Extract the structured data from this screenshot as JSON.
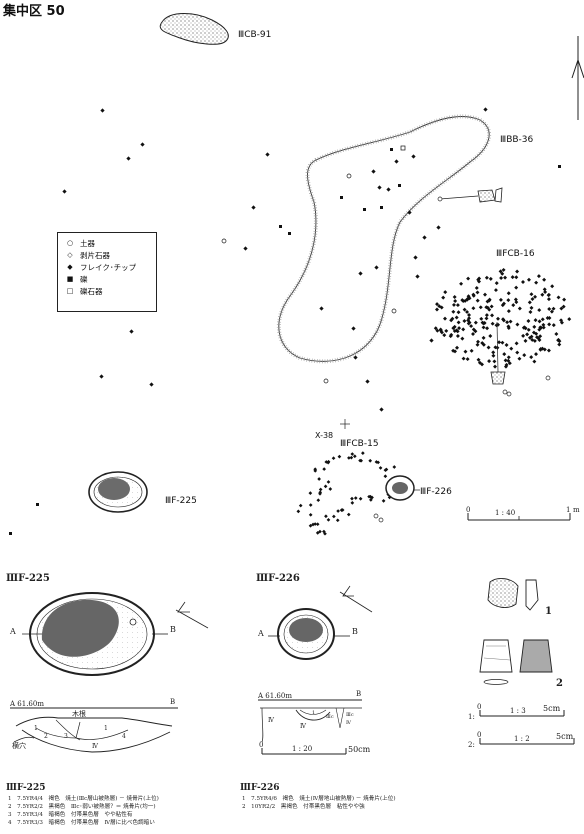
{
  "page_title": "集中区 50",
  "features": {
    "cb91": "ⅢCB-91",
    "bb36": "ⅢBB-36",
    "fcb16": "ⅢFCB-16",
    "fcb15": "ⅢFCB-15",
    "f225": "ⅢF-225",
    "f226": "ⅢF-226",
    "x38": "X-38"
  },
  "legend": [
    {
      "symbol": "○",
      "label": "土器",
      "icon": "open-circle-icon"
    },
    {
      "symbol": "◇",
      "label": "剥片石器",
      "icon": "open-diamond-icon"
    },
    {
      "symbol": "◆",
      "label": "フレイク･チップ",
      "icon": "filled-diamond-icon"
    },
    {
      "symbol": "■",
      "label": "礫",
      "icon": "filled-square-icon"
    },
    {
      "symbol": "□",
      "label": "礫石器",
      "icon": "open-square-icon"
    }
  ],
  "scales": {
    "main": {
      "label": "1 : 40",
      "unit": "m",
      "zero": "0",
      "one": "1"
    },
    "section": {
      "label": "1 : 20",
      "zero": "0",
      "end": "50cm"
    },
    "artifact1": {
      "prefix": "1:",
      "zero": "0",
      "label": "1 : 3",
      "end": "5cm"
    },
    "artifact2": {
      "prefix": "2:",
      "zero": "0",
      "label": "1 : 2",
      "end": "5cm"
    }
  },
  "detail": {
    "f225_title": "ⅢF-225",
    "f226_title": "ⅢF-226",
    "a": "A",
    "b": "B",
    "a_level": "A 61.60m",
    "b2": "B",
    "a_level_226": "A 61.60m",
    "b3": "B",
    "kine": "木根",
    "yokoana": "横穴",
    "artifact_1": "1",
    "artifact_2": "2"
  },
  "notes": {
    "f225_title": "ⅢF-225",
    "f225": [
      "1　7.5YR4/4　褐色　焼土(Ⅲc層山被熱層) － 焼骨片(上位)",
      "2　7.5YR2/2　黒褐色　Ⅲc･弱い被熱層？＝ 焼骨片(均一)",
      "3　7.5YR3/4　暗褐色　付帯黒色層　やや粘性有",
      "4　7.5YR3/3　暗褐色　付帯黒色層　Ⅳ層に比べ色調暗い"
    ],
    "f226_title": "ⅢF-226",
    "f226": [
      "1　7.5YR4/6　褐色　焼土(Ⅳ層地山被熱層) － 焼骨片(上位)",
      "2　10YR2/2　黒褐色　付帯黒色層　粘性やや強"
    ]
  }
}
